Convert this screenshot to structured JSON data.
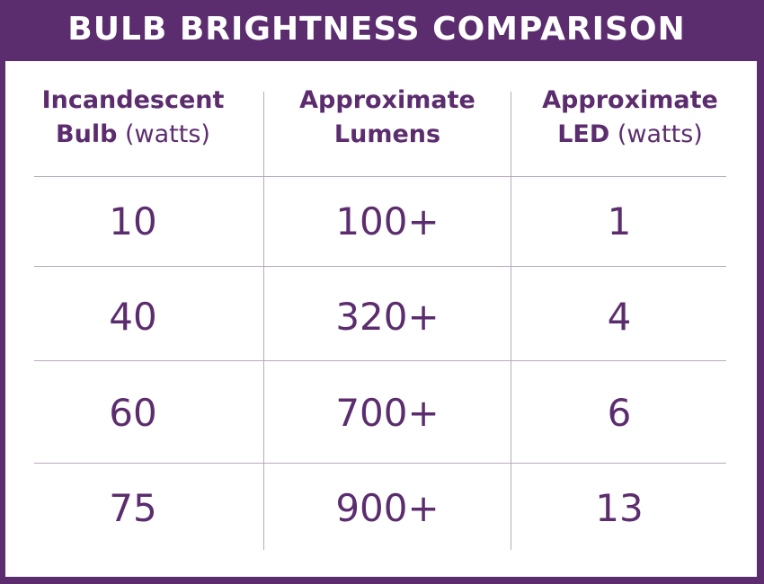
{
  "title": "BULB BRIGHTNESS COMPARISON",
  "colors": {
    "brand": "#5c2d6e",
    "background": "#ffffff",
    "grid": "#b9a9c0"
  },
  "chart_data": {
    "type": "table",
    "title": "BULB BRIGHTNESS COMPARISON",
    "columns": [
      {
        "line1_bold": "Incandescent",
        "line2_bold": "Bulb",
        "line2_light": "(watts)"
      },
      {
        "line1_bold": "Approximate",
        "line2_bold": "Lumens",
        "line2_light": ""
      },
      {
        "line1_bold": "Approximate",
        "line2_bold": "LED",
        "line2_light": "(watts)"
      }
    ],
    "rows": [
      [
        "10",
        "100+",
        "1"
      ],
      [
        "40",
        "320+",
        "4"
      ],
      [
        "60",
        "700+",
        "6"
      ],
      [
        "75",
        "900+",
        "13"
      ]
    ]
  }
}
